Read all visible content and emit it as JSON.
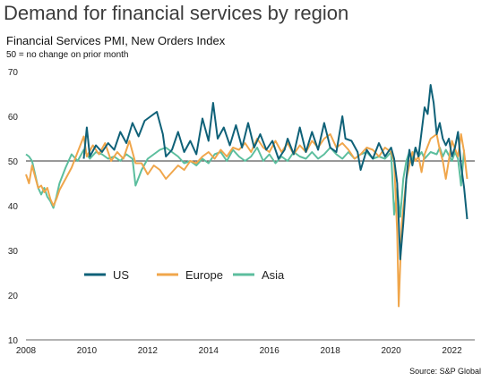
{
  "header": {
    "title": "Demand for financial services by region",
    "subtitle": "Financial Services PMI, New Orders Index",
    "note": "50 = no change on prior month"
  },
  "footer": {
    "source": "Source: S&P Global"
  },
  "chart_data": {
    "type": "line",
    "xlim": [
      2008,
      2022.75
    ],
    "ylim": [
      10,
      70
    ],
    "reference_line": 50,
    "x_ticks": [
      2008,
      2010,
      2012,
      2014,
      2016,
      2018,
      2020,
      2022
    ],
    "y_ticks": [
      10,
      20,
      30,
      40,
      50,
      60,
      70
    ],
    "grid": false,
    "legend_position": "lower-left",
    "series": [
      {
        "name": "US",
        "color": "#0f6178",
        "points": [
          [
            2009.9,
            50.5
          ],
          [
            2010.0,
            57.5
          ],
          [
            2010.1,
            51.0
          ],
          [
            2010.3,
            53.5
          ],
          [
            2010.5,
            52.0
          ],
          [
            2010.7,
            54.0
          ],
          [
            2010.9,
            52.5
          ],
          [
            2011.1,
            56.5
          ],
          [
            2011.3,
            54.0
          ],
          [
            2011.5,
            58.5
          ],
          [
            2011.7,
            55.5
          ],
          [
            2011.9,
            59.0
          ],
          [
            2012.1,
            60.0
          ],
          [
            2012.3,
            61.0
          ],
          [
            2012.5,
            56.0
          ],
          [
            2012.6,
            51.0
          ],
          [
            2012.8,
            52.5
          ],
          [
            2013.0,
            56.5
          ],
          [
            2013.2,
            52.0
          ],
          [
            2013.4,
            54.5
          ],
          [
            2013.6,
            51.5
          ],
          [
            2013.8,
            59.5
          ],
          [
            2014.0,
            54.5
          ],
          [
            2014.15,
            63.0
          ],
          [
            2014.3,
            55.0
          ],
          [
            2014.5,
            57.5
          ],
          [
            2014.7,
            53.5
          ],
          [
            2014.9,
            58.0
          ],
          [
            2015.1,
            53.0
          ],
          [
            2015.3,
            58.5
          ],
          [
            2015.5,
            53.0
          ],
          [
            2015.7,
            56.0
          ],
          [
            2015.9,
            52.5
          ],
          [
            2016.1,
            54.5
          ],
          [
            2016.3,
            50.5
          ],
          [
            2016.5,
            52.5
          ],
          [
            2016.6,
            55.0
          ],
          [
            2016.8,
            51.5
          ],
          [
            2017.0,
            57.5
          ],
          [
            2017.2,
            52.0
          ],
          [
            2017.4,
            56.5
          ],
          [
            2017.6,
            52.5
          ],
          [
            2017.8,
            58.5
          ],
          [
            2018.0,
            53.0
          ],
          [
            2018.2,
            52.0
          ],
          [
            2018.4,
            60.0
          ],
          [
            2018.5,
            55.0
          ],
          [
            2018.7,
            54.5
          ],
          [
            2018.9,
            52.0
          ],
          [
            2019.0,
            48.0
          ],
          [
            2019.2,
            52.5
          ],
          [
            2019.4,
            50.5
          ],
          [
            2019.6,
            54.0
          ],
          [
            2019.8,
            51.0
          ],
          [
            2020.0,
            53.0
          ],
          [
            2020.1,
            50.5
          ],
          [
            2020.2,
            45.0
          ],
          [
            2020.3,
            28.0
          ],
          [
            2020.4,
            36.0
          ],
          [
            2020.5,
            46.0
          ],
          [
            2020.6,
            52.5
          ],
          [
            2020.7,
            49.0
          ],
          [
            2020.8,
            53.0
          ],
          [
            2020.9,
            51.0
          ],
          [
            2021.0,
            56.5
          ],
          [
            2021.1,
            62.0
          ],
          [
            2021.2,
            60.5
          ],
          [
            2021.3,
            67.0
          ],
          [
            2021.4,
            63.0
          ],
          [
            2021.5,
            56.0
          ],
          [
            2021.6,
            58.5
          ],
          [
            2021.7,
            55.0
          ],
          [
            2021.8,
            53.5
          ],
          [
            2021.9,
            55.0
          ],
          [
            2022.0,
            51.0
          ],
          [
            2022.1,
            53.0
          ],
          [
            2022.2,
            56.5
          ],
          [
            2022.3,
            49.0
          ],
          [
            2022.4,
            44.0
          ],
          [
            2022.5,
            37.0
          ]
        ]
      },
      {
        "name": "Europe",
        "color": "#f0a64b",
        "points": [
          [
            2008.0,
            47.0
          ],
          [
            2008.1,
            45.0
          ],
          [
            2008.2,
            49.0
          ],
          [
            2008.3,
            46.5
          ],
          [
            2008.4,
            44.0
          ],
          [
            2008.5,
            44.5
          ],
          [
            2008.6,
            43.0
          ],
          [
            2008.7,
            44.0
          ],
          [
            2008.8,
            41.5
          ],
          [
            2008.9,
            40.0
          ],
          [
            2009.0,
            41.5
          ],
          [
            2009.1,
            43.5
          ],
          [
            2009.3,
            46.0
          ],
          [
            2009.5,
            48.5
          ],
          [
            2009.7,
            52.0
          ],
          [
            2009.9,
            55.5
          ],
          [
            2010.0,
            51.0
          ],
          [
            2010.2,
            53.5
          ],
          [
            2010.4,
            51.5
          ],
          [
            2010.6,
            54.0
          ],
          [
            2010.8,
            50.0
          ],
          [
            2011.0,
            52.0
          ],
          [
            2011.2,
            50.5
          ],
          [
            2011.4,
            54.5
          ],
          [
            2011.6,
            49.5
          ],
          [
            2011.8,
            49.5
          ],
          [
            2012.0,
            47.0
          ],
          [
            2012.2,
            49.0
          ],
          [
            2012.4,
            48.0
          ],
          [
            2012.6,
            46.0
          ],
          [
            2012.8,
            47.5
          ],
          [
            2013.0,
            49.0
          ],
          [
            2013.2,
            48.0
          ],
          [
            2013.4,
            50.0
          ],
          [
            2013.6,
            49.5
          ],
          [
            2013.8,
            51.0
          ],
          [
            2014.0,
            52.0
          ],
          [
            2014.2,
            50.5
          ],
          [
            2014.4,
            52.5
          ],
          [
            2014.6,
            51.0
          ],
          [
            2014.8,
            53.0
          ],
          [
            2015.0,
            52.5
          ],
          [
            2015.2,
            54.0
          ],
          [
            2015.4,
            52.0
          ],
          [
            2015.6,
            55.0
          ],
          [
            2015.8,
            53.0
          ],
          [
            2016.0,
            52.0
          ],
          [
            2016.2,
            54.5
          ],
          [
            2016.4,
            52.0
          ],
          [
            2016.6,
            54.0
          ],
          [
            2016.8,
            51.5
          ],
          [
            2017.0,
            53.5
          ],
          [
            2017.2,
            52.0
          ],
          [
            2017.4,
            54.5
          ],
          [
            2017.6,
            53.0
          ],
          [
            2017.8,
            55.0
          ],
          [
            2018.0,
            56.0
          ],
          [
            2018.2,
            53.0
          ],
          [
            2018.4,
            54.0
          ],
          [
            2018.6,
            52.5
          ],
          [
            2018.8,
            50.5
          ],
          [
            2019.0,
            51.5
          ],
          [
            2019.2,
            53.0
          ],
          [
            2019.4,
            52.5
          ],
          [
            2019.6,
            51.0
          ],
          [
            2019.8,
            53.0
          ],
          [
            2020.0,
            52.0
          ],
          [
            2020.1,
            50.0
          ],
          [
            2020.2,
            34.0
          ],
          [
            2020.25,
            17.5
          ],
          [
            2020.35,
            36.0
          ],
          [
            2020.5,
            46.0
          ],
          [
            2020.6,
            49.0
          ],
          [
            2020.7,
            52.0
          ],
          [
            2020.8,
            50.0
          ],
          [
            2020.9,
            51.0
          ],
          [
            2021.0,
            47.5
          ],
          [
            2021.1,
            51.5
          ],
          [
            2021.3,
            55.0
          ],
          [
            2021.5,
            56.0
          ],
          [
            2021.6,
            52.5
          ],
          [
            2021.7,
            50.0
          ],
          [
            2021.8,
            46.0
          ],
          [
            2022.0,
            54.5
          ],
          [
            2022.2,
            51.0
          ],
          [
            2022.3,
            56.0
          ],
          [
            2022.4,
            52.0
          ],
          [
            2022.5,
            46.0
          ]
        ]
      },
      {
        "name": "Asia",
        "color": "#5cbe9e",
        "points": [
          [
            2008.0,
            51.5
          ],
          [
            2008.1,
            51.0
          ],
          [
            2008.2,
            50.0
          ],
          [
            2008.3,
            47.0
          ],
          [
            2008.4,
            44.0
          ],
          [
            2008.5,
            42.5
          ],
          [
            2008.6,
            44.0
          ],
          [
            2008.7,
            42.0
          ],
          [
            2008.8,
            41.0
          ],
          [
            2008.9,
            39.5
          ],
          [
            2009.0,
            42.0
          ],
          [
            2009.1,
            45.0
          ],
          [
            2009.3,
            48.5
          ],
          [
            2009.5,
            51.5
          ],
          [
            2009.7,
            50.0
          ],
          [
            2009.9,
            52.5
          ],
          [
            2010.1,
            50.5
          ],
          [
            2010.3,
            52.0
          ],
          [
            2010.5,
            51.5
          ],
          [
            2010.7,
            50.5
          ],
          [
            2010.9,
            51.0
          ],
          [
            2011.1,
            50.0
          ],
          [
            2011.3,
            51.5
          ],
          [
            2011.5,
            50.5
          ],
          [
            2011.6,
            44.5
          ],
          [
            2011.8,
            48.0
          ],
          [
            2012.0,
            50.5
          ],
          [
            2012.2,
            51.5
          ],
          [
            2012.4,
            52.5
          ],
          [
            2012.6,
            53.0
          ],
          [
            2012.8,
            52.0
          ],
          [
            2013.0,
            51.0
          ],
          [
            2013.2,
            49.5
          ],
          [
            2013.4,
            50.0
          ],
          [
            2013.6,
            49.0
          ],
          [
            2013.8,
            50.5
          ],
          [
            2014.0,
            49.5
          ],
          [
            2014.2,
            51.5
          ],
          [
            2014.4,
            52.0
          ],
          [
            2014.6,
            50.0
          ],
          [
            2014.8,
            52.5
          ],
          [
            2015.0,
            51.0
          ],
          [
            2015.2,
            50.0
          ],
          [
            2015.4,
            51.0
          ],
          [
            2015.6,
            53.0
          ],
          [
            2015.8,
            50.0
          ],
          [
            2016.0,
            51.5
          ],
          [
            2016.2,
            49.5
          ],
          [
            2016.4,
            51.0
          ],
          [
            2016.6,
            50.0
          ],
          [
            2016.8,
            52.0
          ],
          [
            2017.0,
            51.0
          ],
          [
            2017.2,
            50.5
          ],
          [
            2017.4,
            52.0
          ],
          [
            2017.6,
            50.5
          ],
          [
            2017.8,
            51.5
          ],
          [
            2018.0,
            53.0
          ],
          [
            2018.2,
            51.5
          ],
          [
            2018.4,
            50.5
          ],
          [
            2018.6,
            52.0
          ],
          [
            2018.8,
            50.5
          ],
          [
            2019.0,
            51.5
          ],
          [
            2019.2,
            52.0
          ],
          [
            2019.4,
            50.5
          ],
          [
            2019.6,
            51.0
          ],
          [
            2019.8,
            50.5
          ],
          [
            2020.0,
            52.0
          ],
          [
            2020.1,
            38.0
          ],
          [
            2020.2,
            44.0
          ],
          [
            2020.3,
            37.5
          ],
          [
            2020.4,
            46.0
          ],
          [
            2020.5,
            50.0
          ],
          [
            2020.6,
            52.0
          ],
          [
            2020.7,
            50.5
          ],
          [
            2020.8,
            53.0
          ],
          [
            2020.9,
            51.0
          ],
          [
            2021.0,
            52.0
          ],
          [
            2021.1,
            50.5
          ],
          [
            2021.3,
            52.0
          ],
          [
            2021.5,
            51.5
          ],
          [
            2021.6,
            53.0
          ],
          [
            2021.7,
            51.0
          ],
          [
            2021.8,
            52.5
          ],
          [
            2022.0,
            50.0
          ],
          [
            2022.1,
            52.0
          ],
          [
            2022.2,
            50.5
          ],
          [
            2022.3,
            44.5
          ],
          [
            2022.4,
            52.5
          ]
        ]
      }
    ]
  }
}
